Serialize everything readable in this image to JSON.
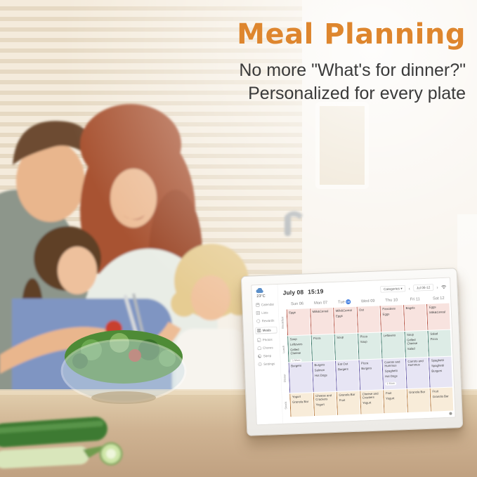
{
  "hero": {
    "title": "Meal Planning",
    "subtitle_line1": "No more \"What's for dinner?\"",
    "subtitle_line2": "Personalized for every plate",
    "accent_color": "#DE862E"
  },
  "device": {
    "weather": {
      "temp": "23°C",
      "icon": "cloud-icon"
    },
    "header": {
      "date": "July 08",
      "time": "15:19"
    },
    "controls": {
      "categories_label": "Categories",
      "caret": "▾",
      "prev": "‹",
      "range": "Jul 06-12",
      "next": "›",
      "wifi_icon": "wifi-icon"
    },
    "sidebar": [
      {
        "label": "Calendar",
        "icon": "calendar",
        "active": false
      },
      {
        "label": "Lists",
        "icon": "lists",
        "active": false
      },
      {
        "label": "Rewards",
        "icon": "rewards",
        "active": false
      },
      {
        "label": "Meals",
        "icon": "meals",
        "active": true
      },
      {
        "label": "Photos",
        "icon": "photos",
        "active": false
      },
      {
        "label": "Chores",
        "icon": "chores",
        "active": false
      },
      {
        "label": "Sleep",
        "icon": "sleep",
        "active": false
      },
      {
        "label": "Settings",
        "icon": "settings",
        "active": false
      }
    ],
    "days": [
      {
        "name": "Sun",
        "num": "06"
      },
      {
        "name": "Mon",
        "num": "07"
      },
      {
        "name": "Tue",
        "num": "08"
      },
      {
        "name": "Wed",
        "num": "09"
      },
      {
        "name": "Thu",
        "num": "10"
      },
      {
        "name": "Fri",
        "num": "11"
      },
      {
        "name": "Sat",
        "num": "12"
      }
    ],
    "selected_index": 2,
    "meal_rows": [
      {
        "label": "Breakfast",
        "bg": "#f8e3df",
        "accent": "#b14a3a",
        "cells": [
          [
            "Eggs"
          ],
          [
            "Milk&Cereal"
          ],
          [
            "Milk&Cereal",
            "Eggs"
          ],
          [
            "Oat"
          ],
          [
            "Pancakes",
            "Eggs"
          ],
          [
            "Bagels"
          ],
          [
            "Eggs",
            "Milk&Cereal"
          ]
        ]
      },
      {
        "label": "Lunch",
        "bg": "#ddece6",
        "accent": "#2f6f60",
        "cells": [
          [
            "Soup",
            "Leftovers",
            "Grilled Cheese",
            "1 More"
          ],
          [
            "Pizza"
          ],
          [
            "Soup"
          ],
          [
            "Pizza",
            "Soup"
          ],
          [
            "Leftovers"
          ],
          [
            "Soup",
            "Grilled Cheese",
            "Salad"
          ],
          [
            "Salad",
            "Pizza"
          ]
        ]
      },
      {
        "label": "Dinner",
        "bg": "#e7e5f4",
        "accent": "#5d51a0",
        "cells": [
          [
            "Burgers"
          ],
          [
            "Burgers",
            "Salmon",
            "Hot Dogs"
          ],
          [
            "Eat Out",
            "Burgers"
          ],
          [
            "Pizza",
            "Burgers"
          ],
          [
            "Carrots and Hummus",
            "Spaghetti",
            "Hot Dogs",
            "1 More"
          ],
          [
            "Carrots and Hummus"
          ],
          [
            "Spaghetti",
            "Spaghetti",
            "Burgers"
          ]
        ]
      },
      {
        "label": "Snack",
        "bg": "#f8ecd9",
        "accent": "#b06f2f",
        "cells": [
          [
            "Yogurt",
            "Granola Bar"
          ],
          [
            "Cheese and Crackers",
            "Yogurt"
          ],
          [
            "Granola Bar",
            "Fruit"
          ],
          [
            "Cheese and Crackers",
            "Yogurt"
          ],
          [
            "Fruit",
            "Yogurt"
          ],
          [
            "Granola Bar"
          ],
          [
            "Fruit",
            "Granola Bar"
          ]
        ]
      }
    ]
  }
}
